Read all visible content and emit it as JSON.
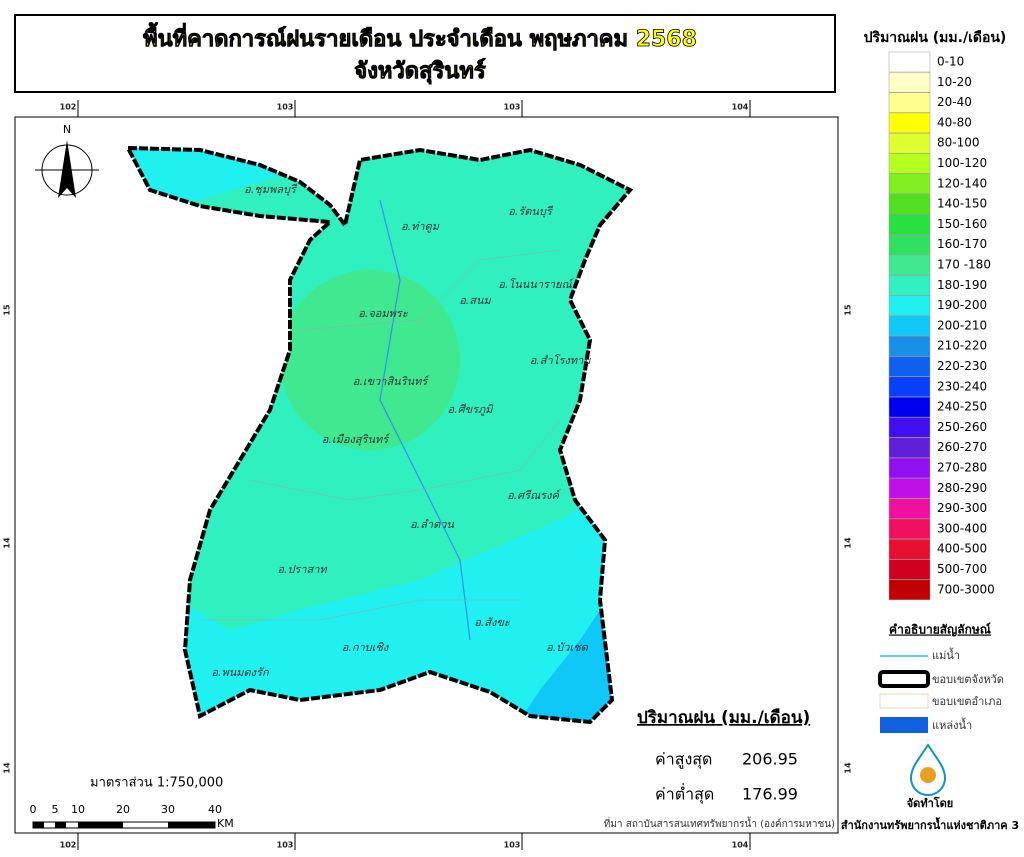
{
  "header": {
    "title": [
      "พื้นที่คาดการณ์ฝนรายเดือน ประจำเดือน พฤษภาคม 2568",
      "จังหวัดสุรินทร์"
    ]
  },
  "legend": {
    "title": "ปริมาณฝน (มม./เดือน)",
    "items": [
      {
        "label": "0-10",
        "color": "#ffffff"
      },
      {
        "label": "10-20",
        "color": "#ffffc8"
      },
      {
        "label": "20-40",
        "color": "#ffff90"
      },
      {
        "label": "40-80",
        "color": "#ffff00"
      },
      {
        "label": "80-100",
        "color": "#e0ff30"
      },
      {
        "label": "100-120",
        "color": "#b4ff1e"
      },
      {
        "label": "120-140",
        "color": "#80f020"
      },
      {
        "label": "140-150",
        "color": "#50e020"
      },
      {
        "label": "150-160",
        "color": "#28e040"
      },
      {
        "label": "160-170",
        "color": "#30e060"
      },
      {
        "label": "170 -180",
        "color": "#40e890"
      },
      {
        "label": "180-190",
        "color": "#30f0c0"
      },
      {
        "label": "190-200",
        "color": "#20f0f0"
      },
      {
        "label": "200-210",
        "color": "#10c8f8"
      },
      {
        "label": "210-220",
        "color": "#1890e8"
      },
      {
        "label": "220-230",
        "color": "#1060f0"
      },
      {
        "label": "230-240",
        "color": "#0840f8"
      },
      {
        "label": "240-250",
        "color": "#0000f0"
      },
      {
        "label": "250-260",
        "color": "#4010f0"
      },
      {
        "label": "260-270",
        "color": "#6020d8"
      },
      {
        "label": "270-280",
        "color": "#9010f0"
      },
      {
        "label": "280-290",
        "color": "#c010e8"
      },
      {
        "label": "290-300",
        "color": "#f010a0"
      },
      {
        "label": "300-400",
        "color": "#f01060"
      },
      {
        "label": "400-500",
        "color": "#e81030"
      },
      {
        "label": "500-700",
        "color": "#d00020"
      },
      {
        "label": "700-3000",
        "color": "#c00000"
      }
    ]
  },
  "symbols": {
    "title": "คำอธิบายสัญลักษณ์",
    "items": [
      "แม่น้ำ",
      "ขอบเขตจังหวัด",
      "ขอบเขตอำเภอ",
      "แหล่งน้ำ"
    ]
  },
  "map": {
    "north": "N",
    "districts": [
      "อ.ชุมพลบุรี",
      "อ.ท่าตูม",
      "อ.รัตนบุรี",
      "อ.โนนนารายณ์",
      "อ.สนม",
      "อ.จอมพระ",
      "อ.สำโรงทาบ",
      "อ.เขวาสินรินทร์",
      "อ.ศีขรภูมิ",
      "อ.เมืองสุรินทร์",
      "อ.ศรีณรงค์",
      "อ.ลำดวน",
      "อ.ปราสาท",
      "อ.สังขะ",
      "อ.บัวเชด",
      "อ.กาบเชิง",
      "อ.พนมดงรัก"
    ],
    "top_labels": [
      "102",
      "103",
      "103",
      "104"
    ],
    "bottom_labels": [
      "102",
      "103",
      "103",
      "104"
    ],
    "left_labels": [
      "15",
      "14",
      "14"
    ],
    "right_labels": [
      "15",
      "14",
      "14"
    ]
  },
  "scale": {
    "text": "มาตราส่วน 1:750,000",
    "ticks": [
      "0",
      "5",
      "10",
      "20",
      "30",
      "40"
    ],
    "unit": "KM"
  },
  "stats": {
    "title": "ปริมาณฝน (มม./เดือน)",
    "max_label": "ค่าสูงสุด",
    "max_value": "206.95",
    "min_label": "ค่าต่ำสุด",
    "min_value": "176.99"
  },
  "source": "ที่มา  สถาบันสารสนเทศทรัพยากรน้ำ (องค์การมหาชน)",
  "producer": {
    "label": "จัดทำโดย",
    "name": "สำนักงานทรัพยากรน้ำแห่งชาติภาค 3"
  }
}
